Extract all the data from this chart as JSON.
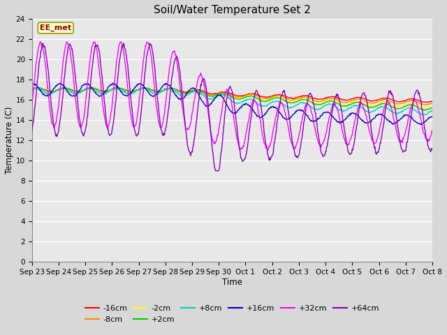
{
  "title": "Soil/Water Temperature Set 2",
  "xlabel": "Time",
  "ylabel": "Temperature (C)",
  "ylim": [
    0,
    24
  ],
  "yticks": [
    0,
    2,
    4,
    6,
    8,
    10,
    12,
    14,
    16,
    18,
    20,
    22,
    24
  ],
  "x_tick_labels": [
    "Sep 23",
    "Sep 24",
    "Sep 25",
    "Sep 26",
    "Sep 27",
    "Sep 28",
    "Sep 29",
    "Sep 30",
    "Oct 1",
    "Oct 2",
    "Oct 3",
    "Oct 4",
    "Oct 5",
    "Oct 6",
    "Oct 7",
    "Oct 8"
  ],
  "annotation_text": "EE_met",
  "annotation_color": "#8B0000",
  "annotation_bg": "#FFFFCC",
  "annotation_border": "#999900",
  "bg_color": "#D8D8D8",
  "plot_bg": "#E8E8E8",
  "grid_color": "#FFFFFF",
  "series": [
    {
      "label": "-16cm",
      "color": "#FF0000"
    },
    {
      "label": "-8cm",
      "color": "#FF8800"
    },
    {
      "label": "-2cm",
      "color": "#FFFF00"
    },
    {
      "label": "+2cm",
      "color": "#00CC00"
    },
    {
      "label": "+8cm",
      "color": "#00CCCC"
    },
    {
      "label": "+16cm",
      "color": "#0000BB"
    },
    {
      "label": "+32cm",
      "color": "#FF00FF"
    },
    {
      "label": "+64cm",
      "color": "#8800BB"
    }
  ],
  "figsize": [
    6.4,
    4.8
  ],
  "dpi": 100
}
